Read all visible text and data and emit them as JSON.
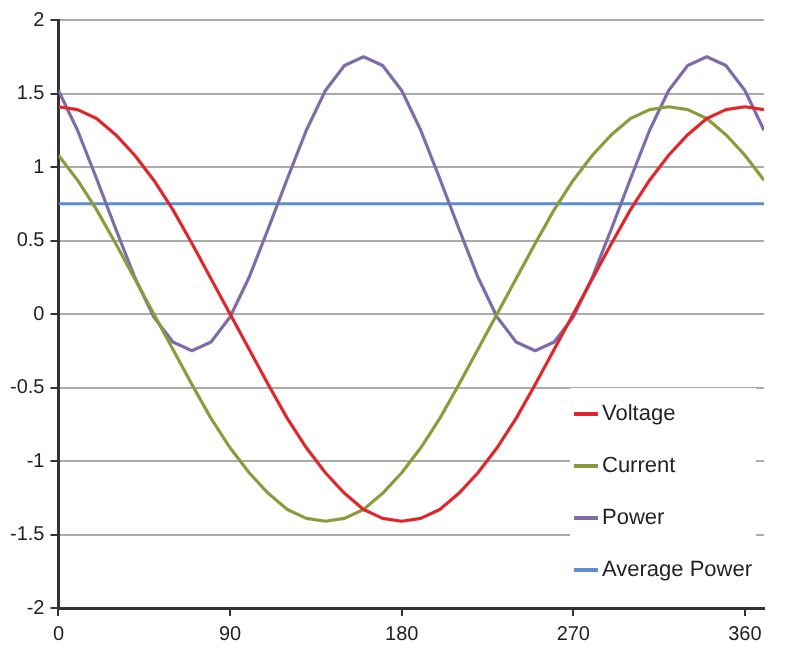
{
  "chart_data": {
    "type": "line",
    "x": [
      0,
      10,
      20,
      30,
      40,
      50,
      60,
      70,
      80,
      90,
      100,
      110,
      120,
      130,
      140,
      150,
      160,
      170,
      180,
      190,
      200,
      210,
      220,
      230,
      240,
      250,
      260,
      270,
      280,
      290,
      300,
      310,
      320,
      330,
      340,
      350,
      360,
      370
    ],
    "series": [
      {
        "name": "Voltage",
        "color": "#e0262b",
        "values": [
          1.41,
          1.39,
          1.33,
          1.22,
          1.08,
          0.91,
          0.71,
          0.48,
          0.24,
          0,
          -0.24,
          -0.48,
          -0.71,
          -0.91,
          -1.08,
          -1.22,
          -1.33,
          -1.39,
          -1.41,
          -1.39,
          -1.33,
          -1.22,
          -1.08,
          -0.91,
          -0.71,
          -0.48,
          -0.24,
          0,
          0.24,
          0.48,
          0.71,
          0.91,
          1.08,
          1.22,
          1.33,
          1.39,
          1.41,
          1.39
        ]
      },
      {
        "name": "Current",
        "color": "#8c9a3c",
        "values": [
          1.08,
          0.91,
          0.71,
          0.48,
          0.24,
          0,
          -0.24,
          -0.48,
          -0.71,
          -0.91,
          -1.08,
          -1.22,
          -1.33,
          -1.39,
          -1.41,
          -1.39,
          -1.33,
          -1.22,
          -1.08,
          -0.91,
          -0.71,
          -0.48,
          -0.24,
          0,
          0.24,
          0.48,
          0.71,
          0.91,
          1.08,
          1.22,
          1.33,
          1.39,
          1.41,
          1.39,
          1.33,
          1.22,
          1.08,
          0.91
        ]
      },
      {
        "name": "Power",
        "color": "#7e6ba8",
        "values": [
          1.52,
          1.25,
          0.92,
          0.58,
          0.25,
          -0.02,
          -0.19,
          -0.25,
          -0.19,
          -0.02,
          0.25,
          0.58,
          0.92,
          1.25,
          1.52,
          1.69,
          1.75,
          1.69,
          1.52,
          1.25,
          0.92,
          0.58,
          0.25,
          -0.02,
          -0.19,
          -0.25,
          -0.19,
          -0.02,
          0.25,
          0.58,
          0.92,
          1.25,
          1.52,
          1.69,
          1.75,
          1.69,
          1.52,
          1.25
        ]
      },
      {
        "name": "Average Power",
        "color": "#5b8fd0",
        "x": [
          0,
          370
        ],
        "values": [
          0.75,
          0.75
        ]
      }
    ],
    "xlim": [
      0,
      370
    ],
    "xticks": [
      0,
      90,
      180,
      270,
      360
    ],
    "ylim": [
      -2,
      2
    ],
    "yticks": [
      -2,
      -1.5,
      -1,
      -0.5,
      0,
      0.5,
      1,
      1.5,
      2
    ],
    "grid": "y",
    "legend": "bottom right",
    "marker": "none",
    "line_style": "solid"
  }
}
